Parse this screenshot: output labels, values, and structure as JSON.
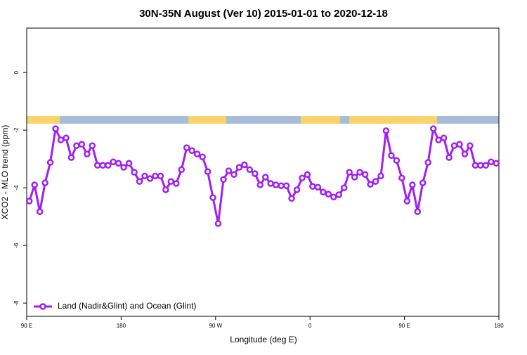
{
  "chart_data": {
    "type": "line",
    "title": "30N-35N August (Ver 10)   2015-01-01 to 2020-12-18",
    "x_label": "Longitude (deg E)",
    "y_label": "XCO2 - MLO trend (ppm)",
    "xlim": [
      90,
      540
    ],
    "ylim": [
      -8.46,
      1.54
    ],
    "xticks": [
      {
        "value": 90,
        "label": "90 E"
      },
      180,
      {
        "value": 270,
        "label": "90 W"
      },
      {
        "value": 360,
        "label": "0"
      },
      {
        "value": 450,
        "label": "90 E"
      },
      {
        "value": 540,
        "label": "180"
      }
    ],
    "yticks": [
      0,
      -2,
      -4,
      -6,
      -8
    ],
    "legend": "bottom-left",
    "x": [
      92.5,
      97.5,
      102.5,
      107.5,
      112.5,
      117.5,
      122.5,
      127.5,
      132.5,
      137.5,
      142.5,
      147.5,
      152.5,
      157.5,
      162.5,
      167.5,
      172.5,
      177.5,
      182.5,
      187.5,
      192.5,
      197.5,
      202.5,
      207.5,
      212.5,
      217.5,
      222.5,
      227.5,
      232.5,
      237.5,
      242.5,
      247.5,
      252.5,
      257.5,
      262.5,
      267.5,
      272.5,
      277.5,
      282.5,
      287.5,
      292.5,
      297.5,
      302.5,
      307.5,
      312.5,
      317.5,
      322.5,
      327.5,
      332.5,
      337.5,
      342.5,
      347.5,
      352.5,
      357.5,
      362.5,
      367.5,
      372.5,
      377.5,
      382.5,
      387.5,
      392.5,
      397.5,
      402.5,
      407.5,
      412.5,
      417.5,
      422.5,
      427.5,
      432.5,
      437.5,
      442.5,
      447.5,
      452.5,
      457.5,
      462.5,
      467.5,
      472.5,
      477.5,
      482.5,
      487.5,
      492.5,
      497.5,
      502.5,
      507.5,
      512.5,
      517.5,
      522.5,
      527.5,
      532.5,
      537.5
    ],
    "series": [
      {
        "name": "Land (Nadir&Glint) and Ocean (Glint)",
        "color": "#a020f0",
        "values": [
          -4.46,
          -3.9,
          -4.83,
          -3.83,
          -3.12,
          -1.95,
          -2.34,
          -2.27,
          -2.95,
          -2.54,
          -2.49,
          -2.83,
          -2.54,
          -3.22,
          -3.22,
          -3.22,
          -3.1,
          -3.15,
          -3.29,
          -3.15,
          -3.46,
          -3.78,
          -3.59,
          -3.68,
          -3.59,
          -3.59,
          -4.07,
          -3.78,
          -3.85,
          -3.37,
          -2.61,
          -2.71,
          -2.83,
          -2.93,
          -3.44,
          -4.34,
          -5.24,
          -3.71,
          -3.41,
          -3.54,
          -3.29,
          -3.2,
          -3.37,
          -3.51,
          -3.9,
          -3.63,
          -3.85,
          -3.9,
          -3.93,
          -3.93,
          -4.37,
          -4.07,
          -3.66,
          -3.54,
          -3.95,
          -3.98,
          -4.15,
          -4.22,
          -4.32,
          -4.24,
          -4.0,
          -3.46,
          -3.63,
          -3.46,
          -3.54,
          -3.88,
          -3.78,
          -3.59,
          -2.02,
          -2.88,
          -3.05,
          -3.66,
          -4.46,
          -3.9,
          -4.83,
          -3.83,
          -3.12,
          -1.95,
          -2.34,
          -2.27,
          -2.95,
          -2.54,
          -2.49,
          -2.83,
          -2.54,
          -3.22,
          -3.22,
          -3.22,
          -3.1,
          -3.15
        ]
      }
    ]
  }
}
